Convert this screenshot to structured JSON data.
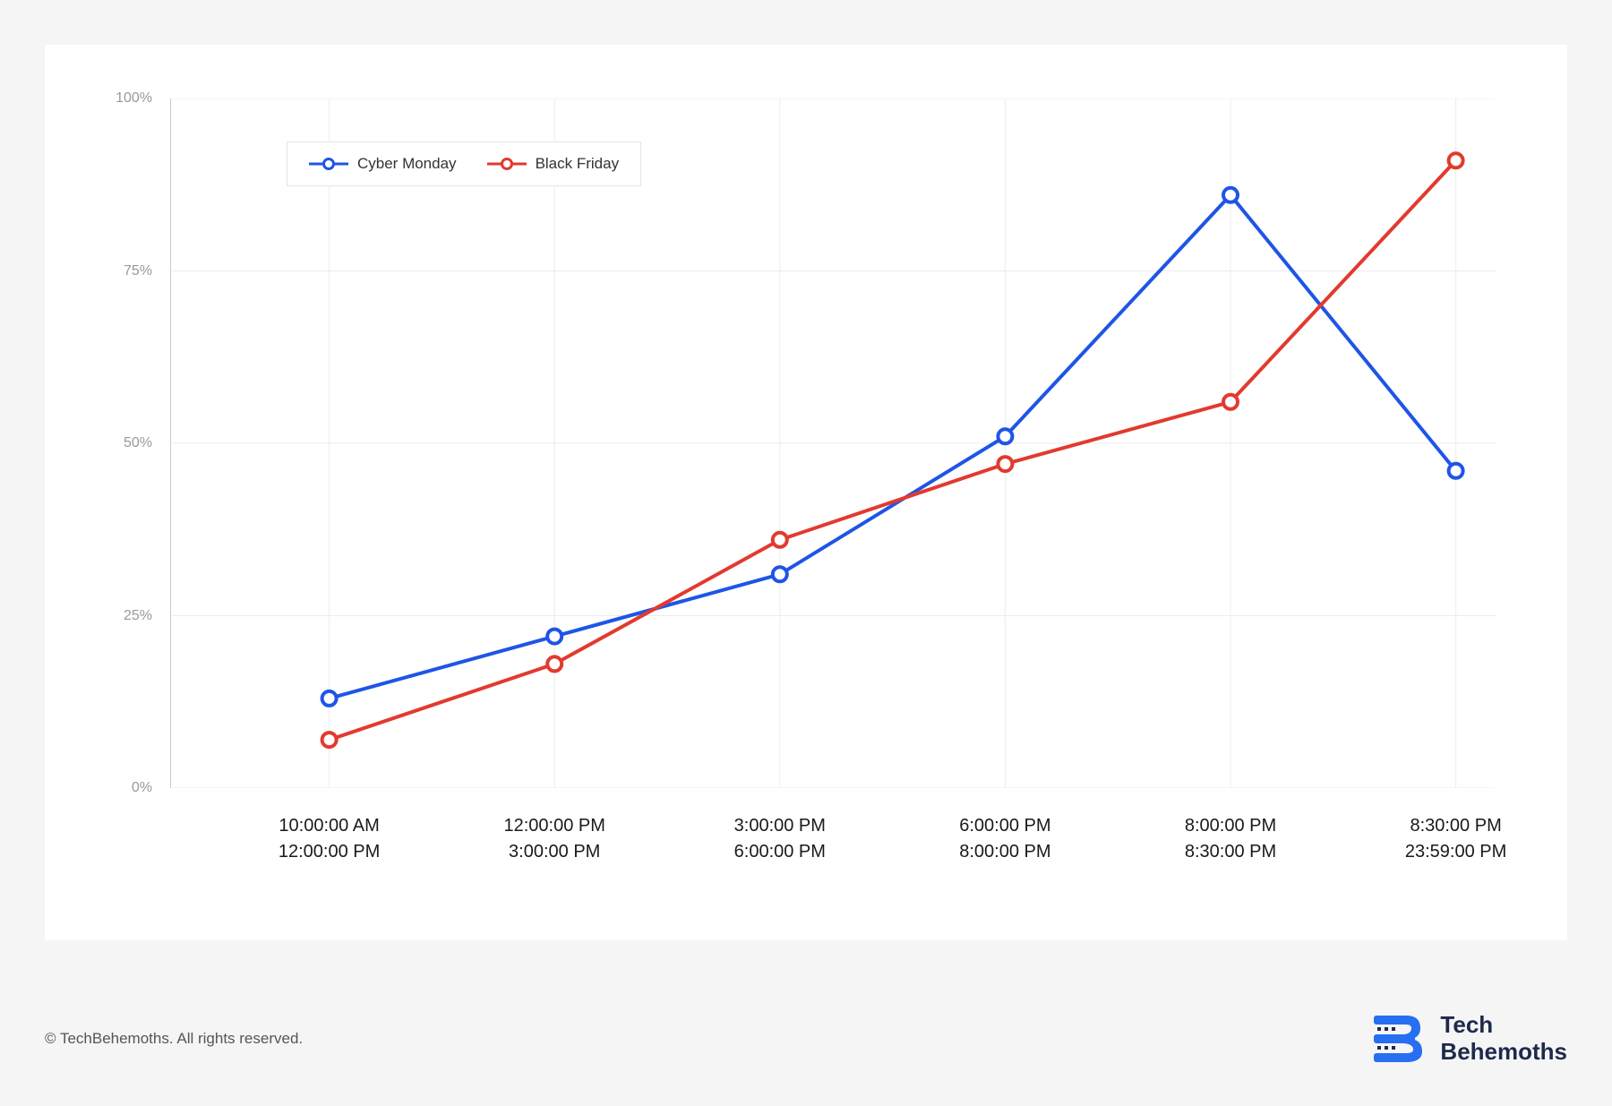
{
  "page": {
    "background_color": "#f5f5f5",
    "card_background": "#ffffff"
  },
  "chart": {
    "type": "line",
    "ylim": [
      0,
      100
    ],
    "yticks": [
      0,
      25,
      50,
      75,
      100
    ],
    "ytick_labels": [
      "0%",
      "25%",
      "50%",
      "75%",
      "100%"
    ],
    "ytick_color": "#999999",
    "ytick_fontsize": 16,
    "x_categories": [
      {
        "line1": "10:00:00 AM",
        "line2": "12:00:00 PM"
      },
      {
        "line1": "12:00:00 PM",
        "line2": "3:00:00 PM"
      },
      {
        "line1": "3:00:00 PM",
        "line2": "6:00:00 PM"
      },
      {
        "line1": "6:00:00 PM",
        "line2": "8:00:00 PM"
      },
      {
        "line1": "8:00:00 PM",
        "line2": "8:30:00 PM"
      },
      {
        "line1": "8:30:00 PM",
        "line2": "23:59:00 PM"
      }
    ],
    "xtick_color": "#1a1a1a",
    "xtick_fontsize": 20,
    "grid_color": "#ececec",
    "axis_line_color": "#cccccc",
    "series": [
      {
        "name": "Cyber Monday",
        "color": "#1f55e6",
        "values": [
          13,
          22,
          31,
          51,
          86,
          46
        ],
        "line_width": 4,
        "marker_radius": 8,
        "marker_stroke": 4,
        "marker_fill": "#ffffff"
      },
      {
        "name": "Black Friday",
        "color": "#e23a2e",
        "values": [
          7,
          18,
          36,
          47,
          56,
          91
        ],
        "line_width": 4,
        "marker_radius": 8,
        "marker_stroke": 4,
        "marker_fill": "#ffffff"
      }
    ],
    "legend": {
      "position": "top-left-inside",
      "border_color": "#e5e5e5",
      "background": "#ffffff",
      "fontsize": 17
    },
    "x_positions_pct": [
      12,
      29,
      46,
      63,
      80,
      97
    ]
  },
  "footer": {
    "copyright": "© TechBehemoths. All rights reserved.",
    "brand_line1": "Tech",
    "brand_line2": "Behemoths",
    "brand_text_color": "#1e2a4a",
    "brand_logo_color": "#276ef1"
  }
}
